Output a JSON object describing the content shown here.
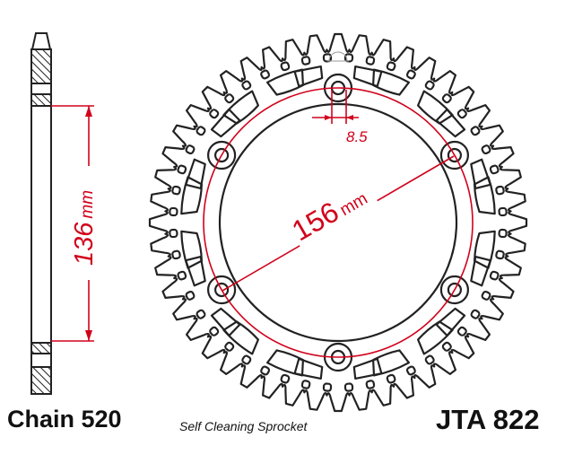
{
  "dimensions": {
    "bolt_circle_value": "156",
    "bolt_circle_unit": "mm",
    "bore_value": "136",
    "bore_unit": "mm",
    "bolt_hole": "8.5"
  },
  "footer": {
    "chain": "Chain 520",
    "description": "Self Cleaning Sprocket",
    "model": "JTA 822"
  },
  "colors": {
    "outline": "#222222",
    "dimension": "#d0021b"
  }
}
